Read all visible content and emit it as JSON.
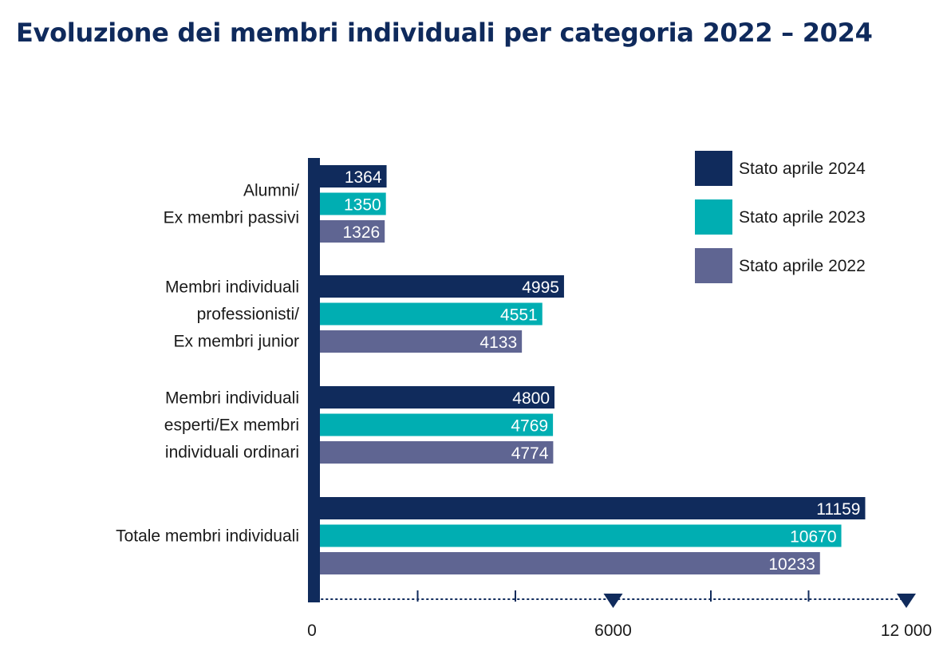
{
  "title": "Evoluzione dei membri individuali per categoria 2022 – 2024",
  "colors": {
    "series_2024": "#102b5c",
    "series_2023": "#00aeb2",
    "series_2022": "#5f6592",
    "axis": "#102b5c",
    "text": "#1a1a1a"
  },
  "chart_data": {
    "type": "bar",
    "orientation": "horizontal",
    "title": "Evoluzione dei membri individuali per categoria 2022 – 2024",
    "categories": [
      [
        "Alumni/",
        "Ex membri passivi"
      ],
      [
        "Membri individuali",
        "professionisti/",
        "Ex membri junior"
      ],
      [
        "Membri individuali",
        "esperti/Ex membri",
        "individuali ordinari"
      ],
      [
        "Totale membri individuali"
      ]
    ],
    "series": [
      {
        "name": "Stato aprile 2024",
        "color": "#102b5c",
        "values": [
          1364,
          4995,
          4800,
          11159
        ],
        "labels": [
          "1364",
          "4995",
          "4800",
          "11159"
        ]
      },
      {
        "name": "Stato aprile 2023",
        "color": "#00aeb2",
        "values": [
          1350,
          4551,
          4769,
          10670
        ],
        "labels": [
          "1350",
          "4551",
          "4769",
          "10670"
        ]
      },
      {
        "name": "Stato aprile 2022",
        "color": "#5f6592",
        "values": [
          1326,
          4133,
          4774,
          10233
        ],
        "labels": [
          "1326",
          "4133",
          "4774",
          "10233"
        ]
      }
    ],
    "xlim": [
      0,
      12000
    ],
    "x_ticks": [
      {
        "value": 0,
        "label": "0",
        "major": true
      },
      {
        "value": 2000,
        "label": "",
        "major": false
      },
      {
        "value": 4000,
        "label": "",
        "major": false
      },
      {
        "value": 6000,
        "label": "6000",
        "major": true
      },
      {
        "value": 8000,
        "label": "",
        "major": false
      },
      {
        "value": 10000,
        "label": "",
        "major": false
      },
      {
        "value": 12000,
        "label": "12 000",
        "major": true
      }
    ],
    "legend_position": "top-right",
    "grid": false
  }
}
